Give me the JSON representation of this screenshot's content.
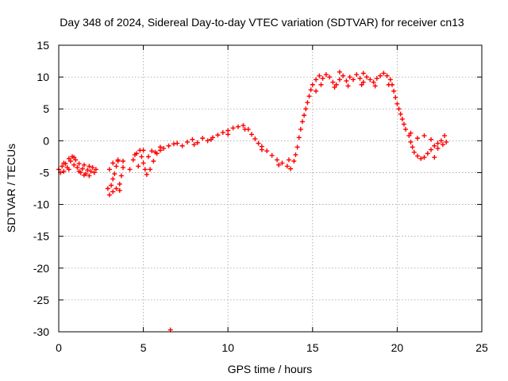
{
  "chart_data": {
    "type": "scatter",
    "title": "Day 348 of 2024, Sidereal Day-to-day VTEC variation (SDTVAR) for receiver cn13",
    "xlabel": "GPS time / hours",
    "ylabel": "SDTVAR / TECUs",
    "xlim": [
      0,
      25
    ],
    "ylim": [
      -30,
      15
    ],
    "xticks": [
      0,
      5,
      10,
      15,
      20,
      25
    ],
    "yticks": [
      -30,
      -25,
      -20,
      -15,
      -10,
      -5,
      0,
      5,
      10,
      15
    ],
    "grid": true,
    "marker": "plus",
    "color": "#ff0000",
    "series": [
      {
        "name": "SDTVAR",
        "points": [
          [
            0.0,
            -4.5
          ],
          [
            0.1,
            -5.0
          ],
          [
            0.2,
            -4.0
          ],
          [
            0.3,
            -4.8
          ],
          [
            0.4,
            -3.6
          ],
          [
            0.5,
            -4.2
          ],
          [
            0.6,
            -2.8
          ],
          [
            0.7,
            -3.2
          ],
          [
            0.8,
            -2.5
          ],
          [
            0.9,
            -3.8
          ],
          [
            1.0,
            -3.0
          ],
          [
            1.1,
            -4.2
          ],
          [
            1.2,
            -3.6
          ],
          [
            1.3,
            -5.0
          ],
          [
            1.4,
            -4.4
          ],
          [
            1.5,
            -3.8
          ],
          [
            1.6,
            -5.2
          ],
          [
            1.7,
            -4.6
          ],
          [
            1.8,
            -5.5
          ],
          [
            1.9,
            -4.8
          ],
          [
            2.0,
            -4.2
          ],
          [
            2.1,
            -5.0
          ],
          [
            2.2,
            -4.5
          ],
          [
            0.3,
            -3.5
          ],
          [
            0.6,
            -4.5
          ],
          [
            0.9,
            -2.6
          ],
          [
            1.2,
            -4.8
          ],
          [
            1.5,
            -5.4
          ],
          [
            1.8,
            -4.0
          ],
          [
            2.9,
            -7.5
          ],
          [
            3.0,
            -8.5
          ],
          [
            3.1,
            -7.0
          ],
          [
            3.2,
            -6.0
          ],
          [
            3.3,
            -5.2
          ],
          [
            3.4,
            -4.0
          ],
          [
            3.5,
            -3.2
          ],
          [
            3.2,
            -8.0
          ],
          [
            3.4,
            -7.5
          ],
          [
            3.6,
            -6.8
          ],
          [
            3.7,
            -5.5
          ],
          [
            3.8,
            -4.2
          ],
          [
            3.0,
            -4.5
          ],
          [
            3.2,
            -3.5
          ],
          [
            3.5,
            -3.0
          ],
          [
            3.8,
            -3.2
          ],
          [
            3.6,
            -7.8
          ],
          [
            4.2,
            -4.5
          ],
          [
            4.4,
            -3.0
          ],
          [
            4.6,
            -2.0
          ],
          [
            4.8,
            -1.5
          ],
          [
            4.9,
            -2.5
          ],
          [
            5.0,
            -3.5
          ],
          [
            5.1,
            -4.5
          ],
          [
            5.2,
            -5.3
          ],
          [
            5.4,
            -4.5
          ],
          [
            5.6,
            -3.2
          ],
          [
            5.8,
            -2.0
          ],
          [
            6.0,
            -1.5
          ],
          [
            6.2,
            -1.2
          ],
          [
            6.5,
            -0.8
          ],
          [
            6.8,
            -0.5
          ],
          [
            4.5,
            -2.2
          ],
          [
            5.0,
            -1.5
          ],
          [
            5.5,
            -1.6
          ],
          [
            6.0,
            -1.0
          ],
          [
            4.7,
            -4.0
          ],
          [
            5.3,
            -2.5
          ],
          [
            5.7,
            -1.8
          ],
          [
            6.6,
            -29.7
          ],
          [
            7.0,
            -0.4
          ],
          [
            7.3,
            -0.8
          ],
          [
            7.6,
            -0.2
          ],
          [
            7.9,
            0.2
          ],
          [
            8.2,
            -0.3
          ],
          [
            8.5,
            0.4
          ],
          [
            8.8,
            0.0
          ],
          [
            9.1,
            0.5
          ],
          [
            9.4,
            0.9
          ],
          [
            9.7,
            1.3
          ],
          [
            10.0,
            1.6
          ],
          [
            10.3,
            2.0
          ],
          [
            10.6,
            2.2
          ],
          [
            10.9,
            2.4
          ],
          [
            11.2,
            1.8
          ],
          [
            11.4,
            1.0
          ],
          [
            11.6,
            0.3
          ],
          [
            11.8,
            -0.4
          ],
          [
            12.0,
            -0.9
          ],
          [
            12.3,
            -1.6
          ],
          [
            12.6,
            -2.3
          ],
          [
            12.9,
            -3.0
          ],
          [
            13.2,
            -3.5
          ],
          [
            13.5,
            -4.0
          ],
          [
            13.7,
            -4.4
          ],
          [
            13.9,
            -3.2
          ],
          [
            14.0,
            -2.2
          ],
          [
            8.0,
            -0.6
          ],
          [
            9.0,
            0.2
          ],
          [
            10.0,
            1.0
          ],
          [
            11.0,
            1.8
          ],
          [
            12.0,
            -1.4
          ],
          [
            13.0,
            -3.8
          ],
          [
            13.6,
            -3.0
          ],
          [
            14.1,
            -1.0
          ],
          [
            14.2,
            0.5
          ],
          [
            14.3,
            1.8
          ],
          [
            14.4,
            3.0
          ],
          [
            14.5,
            4.0
          ],
          [
            14.6,
            5.0
          ],
          [
            14.7,
            6.0
          ],
          [
            14.8,
            7.0
          ],
          [
            14.9,
            8.0
          ],
          [
            15.0,
            8.8
          ],
          [
            15.2,
            9.6
          ],
          [
            15.4,
            10.2
          ],
          [
            15.6,
            9.8
          ],
          [
            15.8,
            10.4
          ],
          [
            16.0,
            10.0
          ],
          [
            16.2,
            9.2
          ],
          [
            16.4,
            8.8
          ],
          [
            16.6,
            9.6
          ],
          [
            16.8,
            10.2
          ],
          [
            17.0,
            9.4
          ],
          [
            17.2,
            10.0
          ],
          [
            17.4,
            9.6
          ],
          [
            17.6,
            10.4
          ],
          [
            17.8,
            9.8
          ],
          [
            18.0,
            9.2
          ],
          [
            18.2,
            10.0
          ],
          [
            18.4,
            9.6
          ],
          [
            18.6,
            9.2
          ],
          [
            18.8,
            9.8
          ],
          [
            19.0,
            10.2
          ],
          [
            19.2,
            10.6
          ],
          [
            19.4,
            10.2
          ],
          [
            19.6,
            9.6
          ],
          [
            15.5,
            8.8
          ],
          [
            16.3,
            8.4
          ],
          [
            17.1,
            8.6
          ],
          [
            17.9,
            8.8
          ],
          [
            18.7,
            8.6
          ],
          [
            19.5,
            8.8
          ],
          [
            15.2,
            7.8
          ],
          [
            16.6,
            10.8
          ],
          [
            18.0,
            10.6
          ],
          [
            19.7,
            8.8
          ],
          [
            19.8,
            7.8
          ],
          [
            19.9,
            6.8
          ],
          [
            20.0,
            5.8
          ],
          [
            20.1,
            5.0
          ],
          [
            20.2,
            4.2
          ],
          [
            20.3,
            3.4
          ],
          [
            20.4,
            2.6
          ],
          [
            20.5,
            1.8
          ],
          [
            20.7,
            0.8
          ],
          [
            20.8,
            -0.2
          ],
          [
            20.9,
            -1.0
          ],
          [
            21.0,
            -1.8
          ],
          [
            21.2,
            -2.4
          ],
          [
            21.4,
            -2.8
          ],
          [
            21.6,
            -2.6
          ],
          [
            21.8,
            -2.0
          ],
          [
            22.0,
            -1.4
          ],
          [
            22.2,
            -0.8
          ],
          [
            22.4,
            -0.4
          ],
          [
            22.6,
            0.0
          ],
          [
            22.8,
            0.8
          ],
          [
            20.8,
            1.2
          ],
          [
            21.2,
            0.4
          ],
          [
            21.6,
            0.8
          ],
          [
            22.0,
            0.2
          ],
          [
            22.4,
            -1.2
          ],
          [
            22.7,
            -0.6
          ],
          [
            22.2,
            -2.6
          ],
          [
            22.9,
            -0.2
          ]
        ]
      }
    ]
  }
}
